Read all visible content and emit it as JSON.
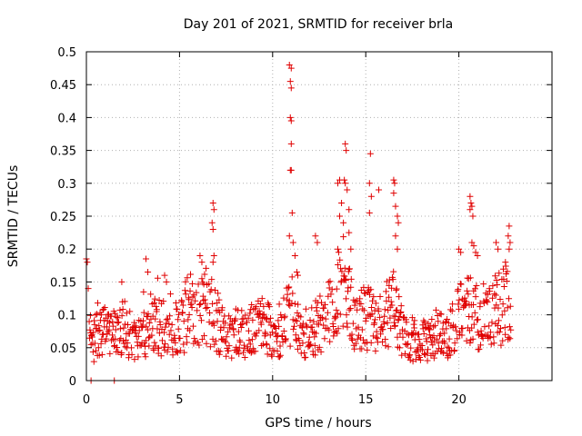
{
  "chart_data": {
    "type": "scatter",
    "title": "Day 201 of 2021, SRMTID for receiver brla",
    "xlabel": "GPS time / hours",
    "ylabel": "SRMTID / TECUs",
    "xlim": [
      0,
      25
    ],
    "ylim": [
      0,
      0.5
    ],
    "x_ticks": [
      0,
      5,
      10,
      15,
      20
    ],
    "x_tick_labels": [
      "0",
      "5",
      "10",
      "15",
      "20"
    ],
    "y_ticks": [
      0,
      0.05,
      0.1,
      0.15,
      0.2,
      0.25,
      0.3,
      0.35,
      0.4,
      0.45,
      0.5
    ],
    "y_tick_labels": [
      "0",
      "0.05",
      "0.1",
      "0.15",
      "0.2",
      "0.25",
      "0.3",
      "0.35",
      "0.4",
      "0.45",
      "0.5"
    ],
    "grid": true,
    "marker": "plus",
    "series_color": "#e00000",
    "activity_profile": [
      [
        0.0,
        0.14
      ],
      [
        0.3,
        0.05
      ],
      [
        0.6,
        0.085
      ],
      [
        1.0,
        0.08
      ],
      [
        1.5,
        0.07
      ],
      [
        2.0,
        0.085
      ],
      [
        2.5,
        0.07
      ],
      [
        3.0,
        0.075
      ],
      [
        3.5,
        0.09
      ],
      [
        4.0,
        0.08
      ],
      [
        4.5,
        0.09
      ],
      [
        5.0,
        0.075
      ],
      [
        5.5,
        0.11
      ],
      [
        6.0,
        0.1
      ],
      [
        6.3,
        0.12
      ],
      [
        6.8,
        0.1
      ],
      [
        7.5,
        0.075
      ],
      [
        8.0,
        0.07
      ],
      [
        8.5,
        0.075
      ],
      [
        9.0,
        0.08
      ],
      [
        9.5,
        0.085
      ],
      [
        10.0,
        0.075
      ],
      [
        10.5,
        0.08
      ],
      [
        11.0,
        0.11
      ],
      [
        11.5,
        0.07
      ],
      [
        12.0,
        0.075
      ],
      [
        12.5,
        0.085
      ],
      [
        13.0,
        0.1
      ],
      [
        13.5,
        0.13
      ],
      [
        14.0,
        0.14
      ],
      [
        14.5,
        0.09
      ],
      [
        15.0,
        0.1
      ],
      [
        15.5,
        0.09
      ],
      [
        16.0,
        0.1
      ],
      [
        16.5,
        0.12
      ],
      [
        17.0,
        0.07
      ],
      [
        17.5,
        0.065
      ],
      [
        18.0,
        0.06
      ],
      [
        18.5,
        0.065
      ],
      [
        19.0,
        0.07
      ],
      [
        19.5,
        0.075
      ],
      [
        20.0,
        0.1
      ],
      [
        20.5,
        0.11
      ],
      [
        21.0,
        0.095
      ],
      [
        21.5,
        0.1
      ],
      [
        22.0,
        0.11
      ],
      [
        22.5,
        0.12
      ],
      [
        22.8,
        0.12
      ]
    ],
    "labeled_points": [
      {
        "x": 0.0,
        "y": 0.185
      },
      {
        "x": 0.05,
        "y": 0.18
      },
      {
        "x": 0.1,
        "y": 0.14
      },
      {
        "x": 0.25,
        "y": 0.0
      },
      {
        "x": 1.5,
        "y": 0.0
      },
      {
        "x": 1.9,
        "y": 0.15
      },
      {
        "x": 3.2,
        "y": 0.185
      },
      {
        "x": 3.3,
        "y": 0.165
      },
      {
        "x": 4.2,
        "y": 0.16
      },
      {
        "x": 4.3,
        "y": 0.15
      },
      {
        "x": 6.1,
        "y": 0.19
      },
      {
        "x": 6.2,
        "y": 0.18
      },
      {
        "x": 6.8,
        "y": 0.27
      },
      {
        "x": 6.85,
        "y": 0.26
      },
      {
        "x": 6.75,
        "y": 0.24
      },
      {
        "x": 6.8,
        "y": 0.23
      },
      {
        "x": 6.85,
        "y": 0.19
      },
      {
        "x": 6.8,
        "y": 0.18
      },
      {
        "x": 10.9,
        "y": 0.48
      },
      {
        "x": 11.0,
        "y": 0.475
      },
      {
        "x": 10.95,
        "y": 0.455
      },
      {
        "x": 11.0,
        "y": 0.445
      },
      {
        "x": 10.95,
        "y": 0.4
      },
      {
        "x": 11.0,
        "y": 0.395
      },
      {
        "x": 11.0,
        "y": 0.36
      },
      {
        "x": 10.95,
        "y": 0.32
      },
      {
        "x": 11.0,
        "y": 0.32
      },
      {
        "x": 11.05,
        "y": 0.255
      },
      {
        "x": 10.9,
        "y": 0.22
      },
      {
        "x": 11.1,
        "y": 0.21
      },
      {
        "x": 11.2,
        "y": 0.19
      },
      {
        "x": 11.3,
        "y": 0.165
      },
      {
        "x": 11.35,
        "y": 0.16
      },
      {
        "x": 12.3,
        "y": 0.22
      },
      {
        "x": 12.4,
        "y": 0.21
      },
      {
        "x": 13.5,
        "y": 0.2
      },
      {
        "x": 13.6,
        "y": 0.25
      },
      {
        "x": 13.5,
        "y": 0.3
      },
      {
        "x": 13.6,
        "y": 0.305
      },
      {
        "x": 13.7,
        "y": 0.27
      },
      {
        "x": 13.9,
        "y": 0.36
      },
      {
        "x": 13.95,
        "y": 0.35
      },
      {
        "x": 13.85,
        "y": 0.305
      },
      {
        "x": 13.9,
        "y": 0.3
      },
      {
        "x": 14.0,
        "y": 0.29
      },
      {
        "x": 14.1,
        "y": 0.26
      },
      {
        "x": 13.8,
        "y": 0.24
      },
      {
        "x": 14.1,
        "y": 0.225
      },
      {
        "x": 14.2,
        "y": 0.2
      },
      {
        "x": 15.25,
        "y": 0.345
      },
      {
        "x": 15.2,
        "y": 0.3
      },
      {
        "x": 15.3,
        "y": 0.28
      },
      {
        "x": 15.2,
        "y": 0.255
      },
      {
        "x": 15.7,
        "y": 0.29
      },
      {
        "x": 16.5,
        "y": 0.305
      },
      {
        "x": 16.55,
        "y": 0.3
      },
      {
        "x": 16.5,
        "y": 0.285
      },
      {
        "x": 16.6,
        "y": 0.265
      },
      {
        "x": 16.7,
        "y": 0.25
      },
      {
        "x": 16.75,
        "y": 0.24
      },
      {
        "x": 16.6,
        "y": 0.22
      },
      {
        "x": 16.7,
        "y": 0.2
      },
      {
        "x": 20.0,
        "y": 0.2
      },
      {
        "x": 20.1,
        "y": 0.195
      },
      {
        "x": 20.6,
        "y": 0.28
      },
      {
        "x": 20.65,
        "y": 0.27
      },
      {
        "x": 20.7,
        "y": 0.265
      },
      {
        "x": 20.6,
        "y": 0.26
      },
      {
        "x": 20.75,
        "y": 0.25
      },
      {
        "x": 20.7,
        "y": 0.21
      },
      {
        "x": 20.8,
        "y": 0.205
      },
      {
        "x": 20.9,
        "y": 0.195
      },
      {
        "x": 21.0,
        "y": 0.19
      },
      {
        "x": 22.0,
        "y": 0.21
      },
      {
        "x": 22.1,
        "y": 0.2
      },
      {
        "x": 22.5,
        "y": 0.18
      },
      {
        "x": 22.7,
        "y": 0.235
      },
      {
        "x": 22.65,
        "y": 0.22
      },
      {
        "x": 22.75,
        "y": 0.21
      },
      {
        "x": 22.7,
        "y": 0.2
      }
    ]
  }
}
